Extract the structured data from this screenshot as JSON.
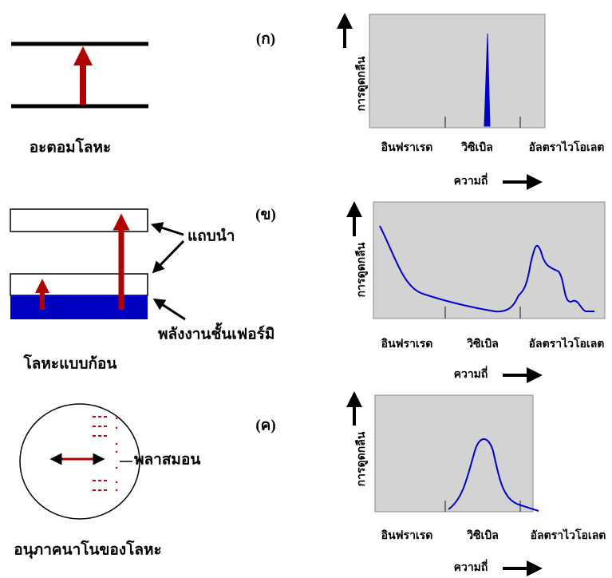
{
  "panels": [
    {
      "label": "(ก)",
      "caption": "อะตอมโลหะ",
      "annotations": [],
      "spectrum": {
        "ylabel": "การดูดกลืน",
        "xlabels": [
          "อินฟราเรด",
          "วิซิเบิล",
          "อัลตราไวโอเลต"
        ],
        "xaxis": "ความถี่"
      }
    },
    {
      "label": "(ข)",
      "caption": "โลหะแบบก้อน",
      "annotations": [
        "แถบนำ",
        "พลังงานชั้นเฟอร์มิ"
      ],
      "spectrum": {
        "ylabel": "การดูดกลืน",
        "xlabels": [
          "อินฟราเรด",
          "วิซิเบิล",
          "อัลตราไวโอเลต"
        ],
        "xaxis": "ความถี่"
      }
    },
    {
      "label": "(ค)",
      "caption": "อนุภาคนาโนของโลหะ",
      "annotations": [
        "พลาสมอน"
      ],
      "spectrum": {
        "ylabel": "การดูดกลืน",
        "xlabels": [
          "อินฟราเรด",
          "วิซิเบิล",
          "อัลตราไวโอเลต"
        ],
        "xaxis": "ความถี่"
      }
    }
  ]
}
